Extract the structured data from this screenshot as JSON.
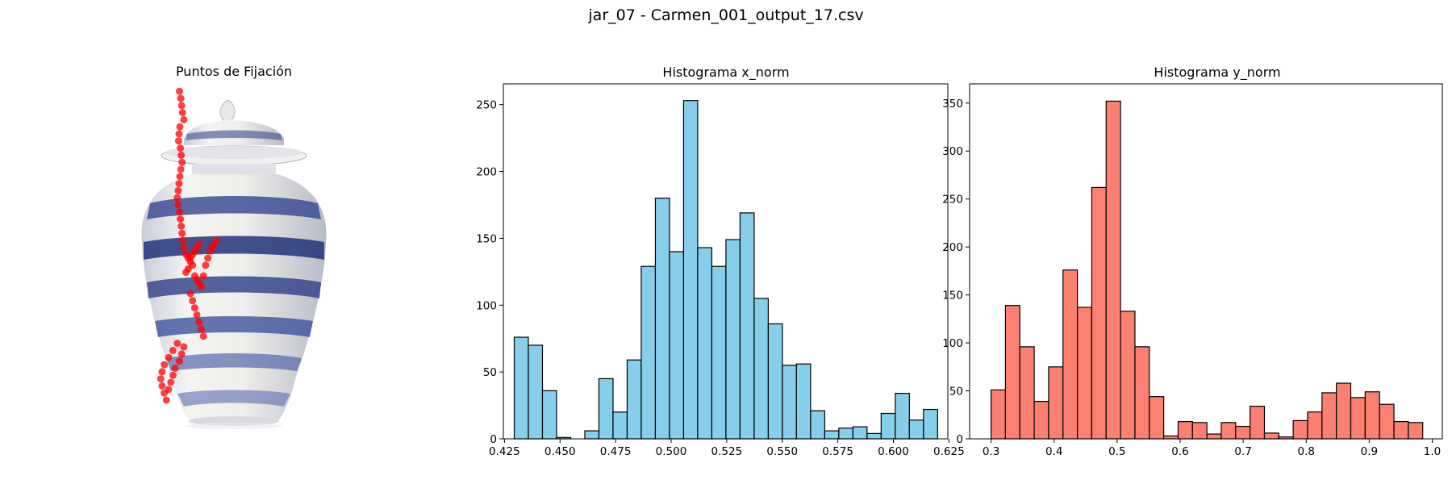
{
  "figure": {
    "suptitle": "jar_07 - Carmen_001_output_17.csv"
  },
  "panels": {
    "image": {
      "title": "Puntos de Fijación"
    },
    "hist_x": {
      "title": "Histograma x_norm"
    },
    "hist_y": {
      "title": "Histograma y_norm"
    }
  },
  "chart_data": [
    {
      "type": "scatter",
      "title": "Puntos de Fijación",
      "description_layer": "red fixation points overlaid on an image of a blue-and-white porcelain ginger jar",
      "axes_visible": false,
      "point_color": "#ff0000",
      "background_image": "porcelain-jar",
      "x": [
        0.475,
        0.478,
        0.48,
        0.482,
        0.485,
        0.476,
        0.474,
        0.473,
        0.477,
        0.479,
        0.481,
        0.478,
        0.476,
        0.474,
        0.472,
        0.47,
        0.472,
        0.475,
        0.477,
        0.479,
        0.481,
        0.483,
        0.485,
        0.49,
        0.495,
        0.5,
        0.505,
        0.51,
        0.515,
        0.52,
        0.5,
        0.505,
        0.495,
        0.49,
        0.51,
        0.515,
        0.52,
        0.525,
        0.53,
        0.535,
        0.54,
        0.545,
        0.55,
        0.555,
        0.56,
        0.5,
        0.505,
        0.51,
        0.515,
        0.52,
        0.525,
        0.53,
        0.47,
        0.46,
        0.45,
        0.44,
        0.435,
        0.432,
        0.435,
        0.44,
        0.445,
        0.45,
        0.455,
        0.46,
        0.465,
        0.475,
        0.48,
        0.485
      ],
      "y": [
        0.03,
        0.05,
        0.07,
        0.09,
        0.11,
        0.13,
        0.15,
        0.17,
        0.19,
        0.21,
        0.23,
        0.25,
        0.27,
        0.29,
        0.31,
        0.33,
        0.35,
        0.37,
        0.39,
        0.41,
        0.43,
        0.45,
        0.47,
        0.49,
        0.5,
        0.5,
        0.49,
        0.48,
        0.47,
        0.46,
        0.51,
        0.52,
        0.53,
        0.54,
        0.55,
        0.56,
        0.57,
        0.58,
        0.55,
        0.52,
        0.5,
        0.48,
        0.47,
        0.46,
        0.45,
        0.6,
        0.62,
        0.64,
        0.66,
        0.68,
        0.7,
        0.72,
        0.74,
        0.76,
        0.78,
        0.8,
        0.82,
        0.84,
        0.86,
        0.88,
        0.9,
        0.87,
        0.85,
        0.83,
        0.81,
        0.79,
        0.77,
        0.75
      ]
    },
    {
      "type": "bar",
      "subtype": "histogram",
      "title": "Histograma x_norm",
      "xlabel": "",
      "ylabel": "",
      "xlim": [
        0.4245,
        0.6245
      ],
      "ylim": [
        0,
        265.5
      ],
      "xticks": [
        0.425,
        0.45,
        0.475,
        0.5,
        0.525,
        0.55,
        0.575,
        0.6,
        0.625
      ],
      "xtick_labels": [
        "0.425",
        "0.450",
        "0.475",
        "0.500",
        "0.525",
        "0.550",
        "0.575",
        "0.600",
        "0.625"
      ],
      "yticks": [
        0,
        50,
        100,
        150,
        200,
        250
      ],
      "bin_start": 0.4294,
      "bin_width": 0.00635,
      "values": [
        76,
        70,
        36,
        1,
        0,
        6,
        45,
        20,
        59,
        129,
        180,
        140,
        253,
        143,
        129,
        149,
        169,
        105,
        86,
        55,
        56,
        21,
        6,
        8,
        9,
        4,
        19,
        34,
        14,
        22
      ],
      "fill_color": "#87ceeb",
      "edge_color": "#000000"
    },
    {
      "type": "bar",
      "subtype": "histogram",
      "title": "Histograma y_norm",
      "xlabel": "",
      "ylabel": "",
      "xlim": [
        0.266,
        1.016
      ],
      "ylim": [
        0,
        370
      ],
      "xticks": [
        0.3,
        0.4,
        0.5,
        0.6,
        0.7,
        0.8,
        0.9,
        1.0
      ],
      "xtick_labels": [
        "0.3",
        "0.4",
        "0.5",
        "0.6",
        "0.7",
        "0.8",
        "0.9",
        "1.0"
      ],
      "yticks": [
        0,
        50,
        100,
        150,
        200,
        250,
        300,
        350
      ],
      "bin_start": 0.3,
      "bin_width": 0.02283,
      "values": [
        51,
        139,
        96,
        39,
        75,
        176,
        137,
        262,
        352,
        133,
        96,
        44,
        3,
        18,
        17,
        5,
        17,
        13,
        34,
        6,
        2,
        19,
        28,
        48,
        58,
        43,
        49,
        36,
        18,
        17
      ],
      "fill_color": "#fa8072",
      "edge_color": "#000000"
    }
  ]
}
